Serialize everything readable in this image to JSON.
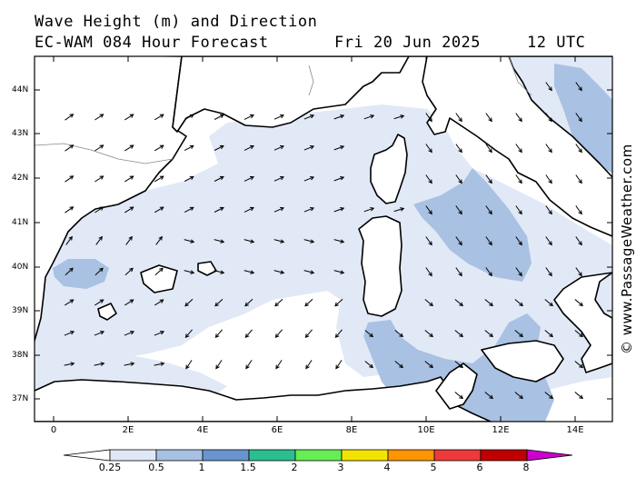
{
  "header": {
    "line1": "Wave Height (m) and Direction",
    "line2": "EC-WAM 084 Hour Forecast",
    "date": "Fri 20 Jun 2025",
    "time": "12 UTC"
  },
  "axes": {
    "lat_labels": [
      "44N",
      "43N",
      "42N",
      "41N",
      "40N",
      "39N",
      "38N",
      "37N"
    ],
    "lon_labels": [
      "0",
      "2E",
      "4E",
      "6E",
      "8E",
      "10E",
      "12E",
      "14E"
    ]
  },
  "colorbar": {
    "labels": [
      "0.25",
      "0.5",
      "1",
      "1.5",
      "2",
      "3",
      "4",
      "5",
      "6",
      "8"
    ],
    "colors": [
      "#ffffff",
      "#dfe8f6",
      "#a8c0e2",
      "#6a94d0",
      "#2bbf90",
      "#66ee55",
      "#f2e400",
      "#ff9500",
      "#ee3a3a",
      "#c00000",
      "#cc00cc"
    ]
  },
  "map": {
    "sea_low": "#ffffff",
    "sea_mid": "#e1e9f6",
    "sea_high": "#a9c1e2",
    "land": "#ffffff",
    "coast": "#000000"
  },
  "credit": "© www.PassageWeather.com"
}
